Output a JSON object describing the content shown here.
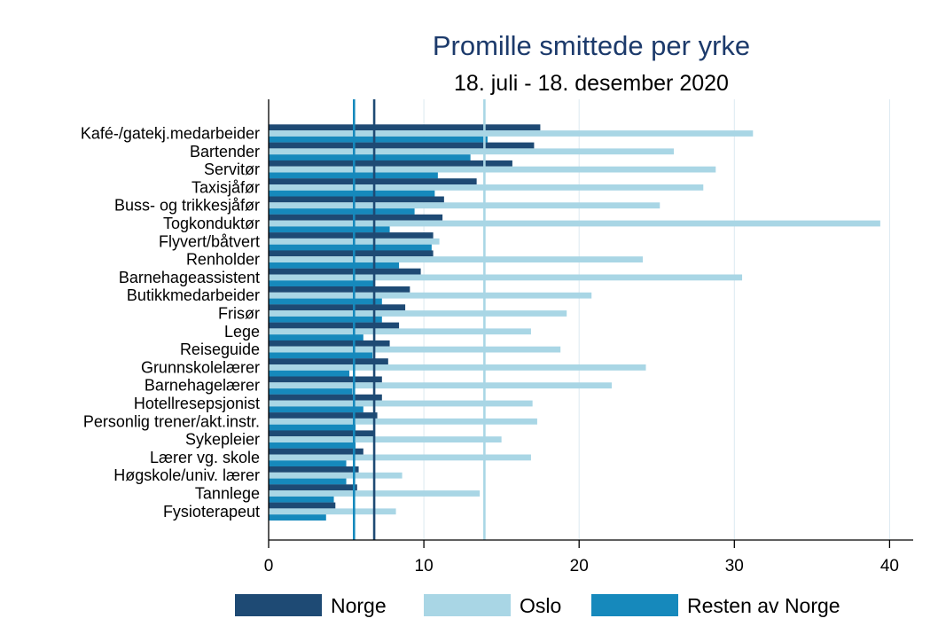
{
  "chart_data": {
    "type": "bar",
    "orientation": "horizontal",
    "title": "Promille smittede per yrke",
    "subtitle": "18. juli - 18. desember 2020",
    "xlim": [
      0,
      41.5
    ],
    "xticks": [
      0,
      10,
      20,
      30,
      40
    ],
    "grid": true,
    "legend_position": "bottom",
    "categories": [
      "Kafé-/gatekj.medarbeider",
      "Bartender",
      "Servitør",
      "Taxisjåfør",
      "Buss- og trikkesjåfør",
      "Togkonduktør",
      "Flyvert/båtvert",
      "Renholder",
      "Barnehageassistent",
      "Butikkmedarbeider",
      "Frisør",
      "Lege",
      "Reiseguide",
      "Grunnskolelærer",
      "Barnehagelærer",
      "Hotellresepsjonist",
      "Personlig trener/akt.instr.",
      "Sykepleier",
      "Lærer vg. skole",
      "Høgskole/univ. lærer",
      "Tannlege",
      "Fysioterapeut"
    ],
    "series": [
      {
        "name": "Norge",
        "color": "#1e4a74",
        "values": [
          17.5,
          17.1,
          15.7,
          13.4,
          11.3,
          11.2,
          10.6,
          10.6,
          9.8,
          9.1,
          8.8,
          8.4,
          7.8,
          7.7,
          7.3,
          7.3,
          7.0,
          6.8,
          6.1,
          5.8,
          5.7,
          4.3
        ]
      },
      {
        "name": "Oslo",
        "color": "#a9d6e5",
        "values": [
          31.2,
          26.1,
          28.8,
          28.0,
          25.2,
          39.4,
          11.0,
          24.1,
          30.5,
          20.8,
          19.2,
          16.9,
          18.8,
          24.3,
          22.1,
          17.0,
          17.3,
          15.0,
          16.9,
          8.6,
          13.6,
          8.2
        ]
      },
      {
        "name": "Resten av Norge",
        "color": "#1689bc",
        "values": [
          14.1,
          13.0,
          10.9,
          10.7,
          9.4,
          7.8,
          10.5,
          8.4,
          6.8,
          7.3,
          7.3,
          6.1,
          6.7,
          5.2,
          5.4,
          6.1,
          5.6,
          5.6,
          5.0,
          5.0,
          4.2,
          3.7
        ]
      }
    ],
    "reference_lines": [
      {
        "series": "Resten av Norge",
        "value": 5.5,
        "color": "#1689bc"
      },
      {
        "series": "Norge",
        "value": 6.8,
        "color": "#1e4a74"
      },
      {
        "series": "Oslo",
        "value": 13.9,
        "color": "#a9d6e5"
      }
    ]
  }
}
